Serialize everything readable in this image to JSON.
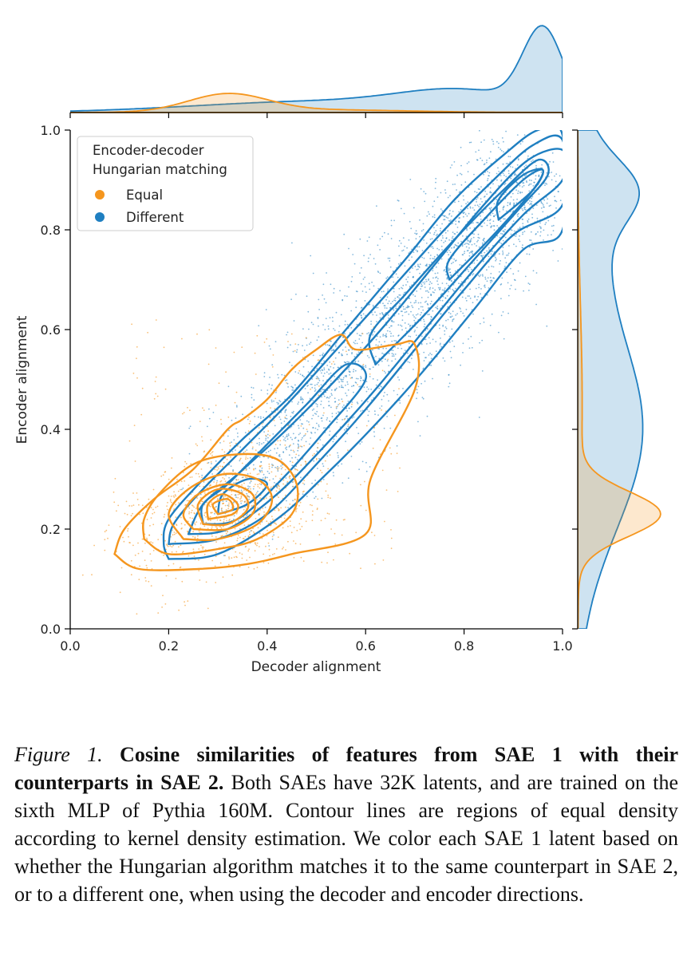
{
  "chart_data": {
    "type": "scatter",
    "xlabel": "Decoder alignment",
    "ylabel": "Encoder alignment",
    "xlim": [
      0.0,
      1.0
    ],
    "ylim": [
      0.0,
      1.0
    ],
    "xticks": [
      "0.0",
      "0.2",
      "0.4",
      "0.6",
      "0.8",
      "1.0"
    ],
    "yticks": [
      "0.0",
      "0.2",
      "0.4",
      "0.6",
      "0.8",
      "1.0"
    ],
    "legend": {
      "title_line1": "Encoder-decoder",
      "title_line2": "Hungarian matching",
      "position": "top-left",
      "entries": [
        "Equal",
        "Different"
      ]
    },
    "series": [
      {
        "name": "Equal",
        "color": "#f5961e",
        "cluster": {
          "center": [
            0.32,
            0.24
          ],
          "spread_x": 0.1,
          "spread_y": 0.06,
          "n_points_drawn": 1100
        },
        "contours": [
          [
            [
              0.09,
              0.15
            ],
            [
              0.14,
              0.12
            ],
            [
              0.26,
              0.12
            ],
            [
              0.36,
              0.13
            ],
            [
              0.45,
              0.15
            ],
            [
              0.6,
              0.19
            ],
            [
              0.61,
              0.3
            ],
            [
              0.7,
              0.48
            ],
            [
              0.7,
              0.57
            ],
            [
              0.66,
              0.57
            ],
            [
              0.58,
              0.56
            ],
            [
              0.55,
              0.59
            ],
            [
              0.5,
              0.56
            ],
            [
              0.45,
              0.52
            ],
            [
              0.4,
              0.46
            ],
            [
              0.35,
              0.42
            ],
            [
              0.32,
              0.4
            ],
            [
              0.25,
              0.32
            ],
            [
              0.17,
              0.26
            ],
            [
              0.11,
              0.2
            ],
            [
              0.09,
              0.15
            ]
          ],
          [
            [
              0.15,
              0.18
            ],
            [
              0.2,
              0.15
            ],
            [
              0.3,
              0.16
            ],
            [
              0.38,
              0.18
            ],
            [
              0.45,
              0.23
            ],
            [
              0.46,
              0.29
            ],
            [
              0.42,
              0.34
            ],
            [
              0.34,
              0.35
            ],
            [
              0.25,
              0.33
            ],
            [
              0.18,
              0.27
            ],
            [
              0.15,
              0.22
            ],
            [
              0.15,
              0.18
            ]
          ],
          [
            [
              0.23,
              0.18
            ],
            [
              0.3,
              0.18
            ],
            [
              0.38,
              0.21
            ],
            [
              0.41,
              0.26
            ],
            [
              0.38,
              0.3
            ],
            [
              0.31,
              0.31
            ],
            [
              0.24,
              0.28
            ],
            [
              0.2,
              0.23
            ],
            [
              0.23,
              0.18
            ]
          ],
          [
            [
              0.25,
              0.2
            ],
            [
              0.32,
              0.2
            ],
            [
              0.37,
              0.23
            ],
            [
              0.37,
              0.27
            ],
            [
              0.32,
              0.29
            ],
            [
              0.26,
              0.27
            ],
            [
              0.23,
              0.23
            ],
            [
              0.25,
              0.2
            ]
          ],
          [
            [
              0.27,
              0.21
            ],
            [
              0.32,
              0.21
            ],
            [
              0.36,
              0.24
            ],
            [
              0.35,
              0.27
            ],
            [
              0.3,
              0.28
            ],
            [
              0.26,
              0.25
            ],
            [
              0.27,
              0.21
            ]
          ],
          [
            [
              0.28,
              0.22
            ],
            [
              0.33,
              0.23
            ],
            [
              0.34,
              0.25
            ],
            [
              0.31,
              0.27
            ],
            [
              0.28,
              0.25
            ],
            [
              0.28,
              0.22
            ]
          ],
          [
            [
              0.3,
              0.23
            ],
            [
              0.33,
              0.24
            ],
            [
              0.32,
              0.26
            ],
            [
              0.29,
              0.25
            ],
            [
              0.3,
              0.23
            ]
          ]
        ],
        "marginal_x": {
          "peak": 0.32,
          "peak_height": 0.18
        },
        "marginal_y": {
          "peak": 0.23,
          "peak_height": 0.75
        }
      },
      {
        "name": "Different",
        "color": "#1f7fc1",
        "cluster": {
          "from": [
            0.3,
            0.24
          ],
          "to": [
            0.95,
            0.92
          ],
          "spread": 0.05,
          "n_points_drawn": 2600
        },
        "contours": [
          [
            [
              0.2,
              0.14
            ],
            [
              0.3,
              0.15
            ],
            [
              0.42,
              0.22
            ],
            [
              0.52,
              0.31
            ],
            [
              0.62,
              0.41
            ],
            [
              0.72,
              0.52
            ],
            [
              0.82,
              0.64
            ],
            [
              0.92,
              0.76
            ],
            [
              1.0,
              0.8
            ],
            [
              1.0,
              0.99
            ],
            [
              0.95,
              1.0
            ],
            [
              0.88,
              0.95
            ],
            [
              0.78,
              0.86
            ],
            [
              0.68,
              0.74
            ],
            [
              0.56,
              0.6
            ],
            [
              0.45,
              0.47
            ],
            [
              0.35,
              0.38
            ],
            [
              0.27,
              0.3
            ],
            [
              0.2,
              0.22
            ],
            [
              0.19,
              0.17
            ],
            [
              0.2,
              0.14
            ]
          ],
          [
            [
              0.2,
              0.17
            ],
            [
              0.3,
              0.18
            ],
            [
              0.4,
              0.23
            ],
            [
              0.5,
              0.33
            ],
            [
              0.6,
              0.44
            ],
            [
              0.7,
              0.56
            ],
            [
              0.8,
              0.68
            ],
            [
              0.9,
              0.79
            ],
            [
              1.0,
              0.85
            ],
            [
              1.0,
              0.98
            ],
            [
              0.94,
              0.97
            ],
            [
              0.86,
              0.9
            ],
            [
              0.76,
              0.8
            ],
            [
              0.66,
              0.69
            ],
            [
              0.55,
              0.57
            ],
            [
              0.44,
              0.45
            ],
            [
              0.34,
              0.35
            ],
            [
              0.26,
              0.27
            ],
            [
              0.21,
              0.21
            ],
            [
              0.2,
              0.17
            ]
          ],
          [
            [
              0.24,
              0.19
            ],
            [
              0.32,
              0.2
            ],
            [
              0.42,
              0.27
            ],
            [
              0.52,
              0.37
            ],
            [
              0.62,
              0.48
            ],
            [
              0.72,
              0.6
            ],
            [
              0.82,
              0.72
            ],
            [
              0.92,
              0.83
            ],
            [
              1.0,
              0.9
            ],
            [
              1.0,
              0.96
            ],
            [
              0.93,
              0.94
            ],
            [
              0.84,
              0.85
            ],
            [
              0.74,
              0.73
            ],
            [
              0.64,
              0.61
            ],
            [
              0.54,
              0.5
            ],
            [
              0.44,
              0.4
            ],
            [
              0.34,
              0.31
            ],
            [
              0.27,
              0.25
            ],
            [
              0.24,
              0.19
            ]
          ],
          [
            [
              0.27,
              0.21
            ],
            [
              0.34,
              0.22
            ],
            [
              0.43,
              0.3
            ],
            [
              0.52,
              0.4
            ],
            [
              0.6,
              0.5
            ],
            [
              0.56,
              0.53
            ],
            [
              0.48,
              0.45
            ],
            [
              0.4,
              0.37
            ],
            [
              0.32,
              0.29
            ],
            [
              0.27,
              0.25
            ],
            [
              0.27,
              0.21
            ]
          ],
          [
            [
              0.62,
              0.53
            ],
            [
              0.72,
              0.63
            ],
            [
              0.82,
              0.74
            ],
            [
              0.91,
              0.84
            ],
            [
              0.97,
              0.91
            ],
            [
              0.95,
              0.94
            ],
            [
              0.88,
              0.88
            ],
            [
              0.78,
              0.78
            ],
            [
              0.68,
              0.67
            ],
            [
              0.61,
              0.59
            ],
            [
              0.62,
              0.53
            ]
          ],
          [
            [
              0.77,
              0.7
            ],
            [
              0.86,
              0.79
            ],
            [
              0.94,
              0.88
            ],
            [
              0.96,
              0.92
            ],
            [
              0.92,
              0.9
            ],
            [
              0.84,
              0.82
            ],
            [
              0.77,
              0.74
            ],
            [
              0.77,
              0.7
            ]
          ],
          [
            [
              0.87,
              0.82
            ],
            [
              0.94,
              0.88
            ],
            [
              0.96,
              0.92
            ],
            [
              0.92,
              0.91
            ],
            [
              0.87,
              0.86
            ],
            [
              0.87,
              0.82
            ]
          ],
          [
            [
              0.3,
              0.23
            ],
            [
              0.36,
              0.25
            ],
            [
              0.4,
              0.29
            ],
            [
              0.36,
              0.3
            ],
            [
              0.31,
              0.27
            ],
            [
              0.3,
              0.23
            ]
          ]
        ],
        "marginal_x": {
          "peak": 0.95,
          "peak_height": 0.95
        },
        "marginal_y": {
          "peak": 0.9,
          "peak_height": 0.95
        }
      }
    ]
  },
  "caption": {
    "label": "Figure 1.",
    "title": "Cosine similarities of features from SAE 1 with their counterparts in SAE 2.",
    "body": "Both SAEs have 32K latents, and are trained on the sixth MLP of Pythia 160M. Contour lines are regions of equal density according to kernel density estimation. We color each SAE 1 latent based on whether the Hungarian algorithm matches it to the same counterpart in SAE 2, or to a different one, when using the decoder and encoder directions."
  }
}
